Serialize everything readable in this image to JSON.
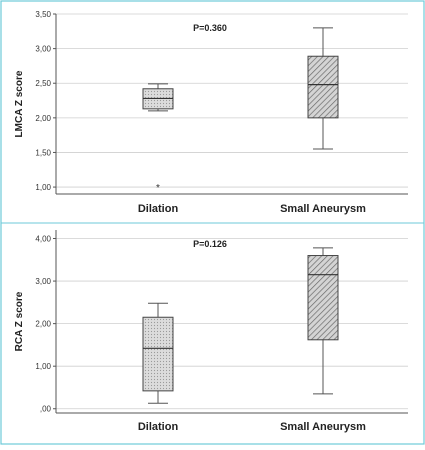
{
  "chart_data": [
    {
      "type": "boxplot",
      "ylabel": "LMCA Z score",
      "annotation": "P=0.360",
      "ylim": [
        0.9,
        3.5
      ],
      "yticks": [
        "1,00",
        "1,50",
        "2,00",
        "2,50",
        "3,00",
        "3,50"
      ],
      "ytick_values": [
        1.0,
        1.5,
        2.0,
        2.5,
        3.0,
        3.5
      ],
      "grid": true,
      "categories": [
        "Dilation",
        "Small Aneurysm"
      ],
      "boxes": [
        {
          "min": 2.1,
          "q1": 2.13,
          "median": 2.28,
          "q3": 2.42,
          "max": 2.49,
          "outliers": [
            1.0
          ],
          "fill": "dotted"
        },
        {
          "min": 1.55,
          "q1": 2.0,
          "median": 2.48,
          "q3": 2.89,
          "max": 3.3,
          "outliers": [],
          "fill": "hatched"
        }
      ]
    },
    {
      "type": "boxplot",
      "ylabel": "RCA Z score",
      "annotation": "P=0.126",
      "ylim": [
        -0.1,
        4.2
      ],
      "yticks": [
        ",00",
        "1,00",
        "2,00",
        "3,00",
        "4,00"
      ],
      "ytick_values": [
        0.0,
        1.0,
        2.0,
        3.0,
        4.0
      ],
      "grid": true,
      "categories": [
        "Dilation",
        "Small Aneurysm"
      ],
      "boxes": [
        {
          "min": 0.13,
          "q1": 0.42,
          "median": 1.42,
          "q3": 2.15,
          "max": 2.48,
          "outliers": [],
          "fill": "dotted"
        },
        {
          "min": 0.35,
          "q1": 1.62,
          "median": 3.15,
          "q3": 3.6,
          "max": 3.78,
          "outliers": [],
          "fill": "hatched"
        }
      ]
    }
  ]
}
